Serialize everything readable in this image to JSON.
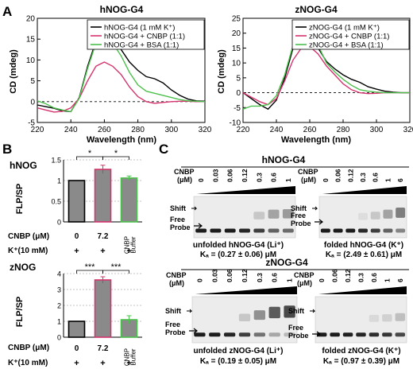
{
  "panel_labels": {
    "a": "A",
    "b": "B",
    "c": "C"
  },
  "cd_axes": {
    "xlabel": "Wavelength (nm)",
    "ylabel": "CD (mdeg)"
  },
  "chart_data": [
    {
      "id": "cd-hnog",
      "type": "line",
      "title": "hNOG-G4",
      "xlabel": "Wavelength (nm)",
      "ylabel": "CD (mdeg)",
      "xlim": [
        220,
        320
      ],
      "ylim": [
        -5,
        20
      ],
      "xticks": [
        "220",
        "240",
        "260",
        "280",
        "300",
        "320"
      ],
      "yticks": [
        "-5",
        "0",
        "5",
        "10",
        "15",
        "20"
      ],
      "legend": "top-right",
      "series": [
        {
          "name": "hNOG-G4 (1 mM K⁺)",
          "color": "#000000",
          "x": [
            220,
            225,
            230,
            235,
            240,
            245,
            250,
            255,
            260,
            265,
            270,
            275,
            280,
            285,
            290,
            295,
            300,
            305,
            310,
            315,
            320
          ],
          "y": [
            -0.8,
            -1.2,
            -1.6,
            -2.2,
            -2.4,
            1.0,
            8.5,
            14.5,
            16.0,
            15.0,
            12.5,
            9.5,
            7.5,
            6.0,
            5.5,
            4.5,
            2.8,
            1.5,
            0.6,
            0.2,
            0.1
          ]
        },
        {
          "name": "hNOG-G4 + CNBP (1:1)",
          "color": "#d6336e",
          "x": [
            220,
            225,
            230,
            235,
            240,
            245,
            250,
            255,
            260,
            265,
            270,
            275,
            280,
            285,
            290,
            295,
            300,
            305,
            310,
            315,
            320
          ],
          "y": [
            -1.5,
            -2.0,
            -2.5,
            -2.3,
            -1.5,
            0.8,
            5.0,
            8.5,
            9.5,
            8.5,
            6.5,
            3.5,
            1.2,
            0.0,
            -0.4,
            -0.2,
            0.0,
            0.1,
            0.1,
            0.0,
            0.0
          ]
        },
        {
          "name": "hNOG-G4 + BSA (1:1)",
          "color": "#4cc04c",
          "x": [
            220,
            225,
            230,
            235,
            240,
            245,
            250,
            255,
            260,
            265,
            270,
            275,
            280,
            285,
            290,
            295,
            300,
            305,
            310,
            315,
            320
          ],
          "y": [
            0.2,
            -0.5,
            -1.5,
            -2.0,
            -2.4,
            0.8,
            8.0,
            14.0,
            15.5,
            14.0,
            11.0,
            7.0,
            4.0,
            2.5,
            2.0,
            1.5,
            1.0,
            0.5,
            0.2,
            0.1,
            0.0
          ]
        }
      ]
    },
    {
      "id": "cd-znog",
      "type": "line",
      "title": "zNOG-G4",
      "xlabel": "Wavelength (nm)",
      "ylabel": "CD (mdeg)",
      "xlim": [
        220,
        320
      ],
      "ylim": [
        -10,
        25
      ],
      "xticks": [
        "220",
        "240",
        "260",
        "280",
        "300",
        "320"
      ],
      "yticks": [
        "-10",
        "-5",
        "0",
        "5",
        "10",
        "15",
        "20",
        "25"
      ],
      "legend": "top-right",
      "series": [
        {
          "name": "zNOG-G4 (1 mM K⁺)",
          "color": "#000000",
          "x": [
            220,
            225,
            230,
            235,
            240,
            245,
            250,
            255,
            260,
            265,
            270,
            275,
            280,
            285,
            290,
            295,
            300,
            305,
            310,
            315,
            320
          ],
          "y": [
            0.0,
            -2.0,
            -4.0,
            -5.5,
            -2.5,
            5.0,
            15.0,
            20.5,
            19.5,
            15.0,
            10.5,
            8.0,
            6.0,
            4.5,
            3.5,
            2.0,
            1.2,
            0.5,
            0.2,
            0.0,
            0.0
          ]
        },
        {
          "name": "zNOG-G4 + CNBP (1:1)",
          "color": "#d6336e",
          "x": [
            220,
            225,
            230,
            235,
            240,
            245,
            250,
            255,
            260,
            265,
            270,
            275,
            280,
            285,
            290,
            295,
            300,
            305,
            310,
            315,
            320
          ],
          "y": [
            0.0,
            -1.5,
            -3.0,
            -4.0,
            -2.0,
            4.0,
            11.0,
            15.0,
            15.5,
            13.0,
            9.0,
            6.0,
            3.0,
            1.0,
            0.0,
            -0.3,
            -0.2,
            0.0,
            0.0,
            0.0,
            0.0
          ]
        },
        {
          "name": "zNOG-G4 + BSA (1:1)",
          "color": "#4cc04c",
          "x": [
            220,
            225,
            230,
            235,
            240,
            245,
            250,
            255,
            260,
            265,
            270,
            275,
            280,
            285,
            290,
            295,
            300,
            305,
            310,
            315,
            320
          ],
          "y": [
            -5.5,
            -4.5,
            -4.5,
            -4.0,
            -1.0,
            6.0,
            16.0,
            21.5,
            21.0,
            16.0,
            10.0,
            7.0,
            4.5,
            2.5,
            1.0,
            0.5,
            0.2,
            0.0,
            0.0,
            0.0,
            0.0
          ]
        }
      ]
    },
    {
      "id": "bar-hnog",
      "type": "bar",
      "title": "hNOG",
      "ylabel": "FLP/SP",
      "ylim": [
        0,
        1.5
      ],
      "yticks": [
        "0",
        "0.5",
        "1",
        "1.5"
      ],
      "categories": [
        "0",
        "7.2",
        "CNBP Buffer"
      ],
      "values": [
        1.0,
        1.27,
        1.06
      ],
      "errors": [
        0,
        0.1,
        0.05
      ],
      "edge_colors": [
        "#000000",
        "#d6336e",
        "#4cc04c"
      ],
      "significance": [
        "*",
        "*"
      ],
      "row_labels": {
        "cnbp": "CNBP (μM)",
        "k": "K⁺(10 mM)"
      },
      "k_values": [
        "+",
        "+",
        "+"
      ]
    },
    {
      "id": "bar-znog",
      "type": "bar",
      "title": "zNOG",
      "ylabel": "FLP/SP",
      "ylim": [
        0,
        4
      ],
      "yticks": [
        "0",
        "1",
        "2",
        "3",
        "4"
      ],
      "categories": [
        "0",
        "7.2",
        "CNBP Buffer"
      ],
      "values": [
        1.0,
        3.6,
        1.1
      ],
      "errors": [
        0,
        0.2,
        0.25
      ],
      "edge_colors": [
        "#000000",
        "#d6336e",
        "#4cc04c"
      ],
      "significance": [
        "***",
        "***"
      ],
      "row_labels": {
        "cnbp": "CNBP (μM)",
        "k": "K⁺(10 mM)"
      },
      "k_values": [
        "+",
        "+",
        "+"
      ]
    }
  ],
  "gels": {
    "hnog_title": "hNOG-G4",
    "znog_title": "zNOG-G4",
    "cnbp_label": "CNBP",
    "cnbp_unit": "(μM)",
    "conc_left": [
      "0",
      "0.03",
      "0.06",
      "0.12",
      "0.3",
      "0.6",
      "1"
    ],
    "conc_right": [
      "0",
      "0.06",
      "0.12",
      "0.3",
      "0.6",
      "1",
      "6"
    ],
    "shift": "Shift",
    "free": "Free",
    "probe": "Probe",
    "captions": {
      "hnog_unfolded": "unfolded hNOG-G4  (Li⁺)",
      "hnog_unfolded_kd": "Kₐ = (0.27 ± 0.06) μM",
      "hnog_folded": "folded hNOG-G4  (K⁺)",
      "hnog_folded_kd": "Kₐ = (2.49 ± 0.61) μM",
      "znog_unfolded": "unfolded zNOG-G4  (Li⁺)",
      "znog_unfolded_kd": "Kₐ = (0.19 ± 0.05) μM",
      "znog_folded": "folded zNOG-G4  (K⁺)",
      "znog_folded_kd": "Kₐ = (0.97 ± 0.39) μM"
    }
  }
}
